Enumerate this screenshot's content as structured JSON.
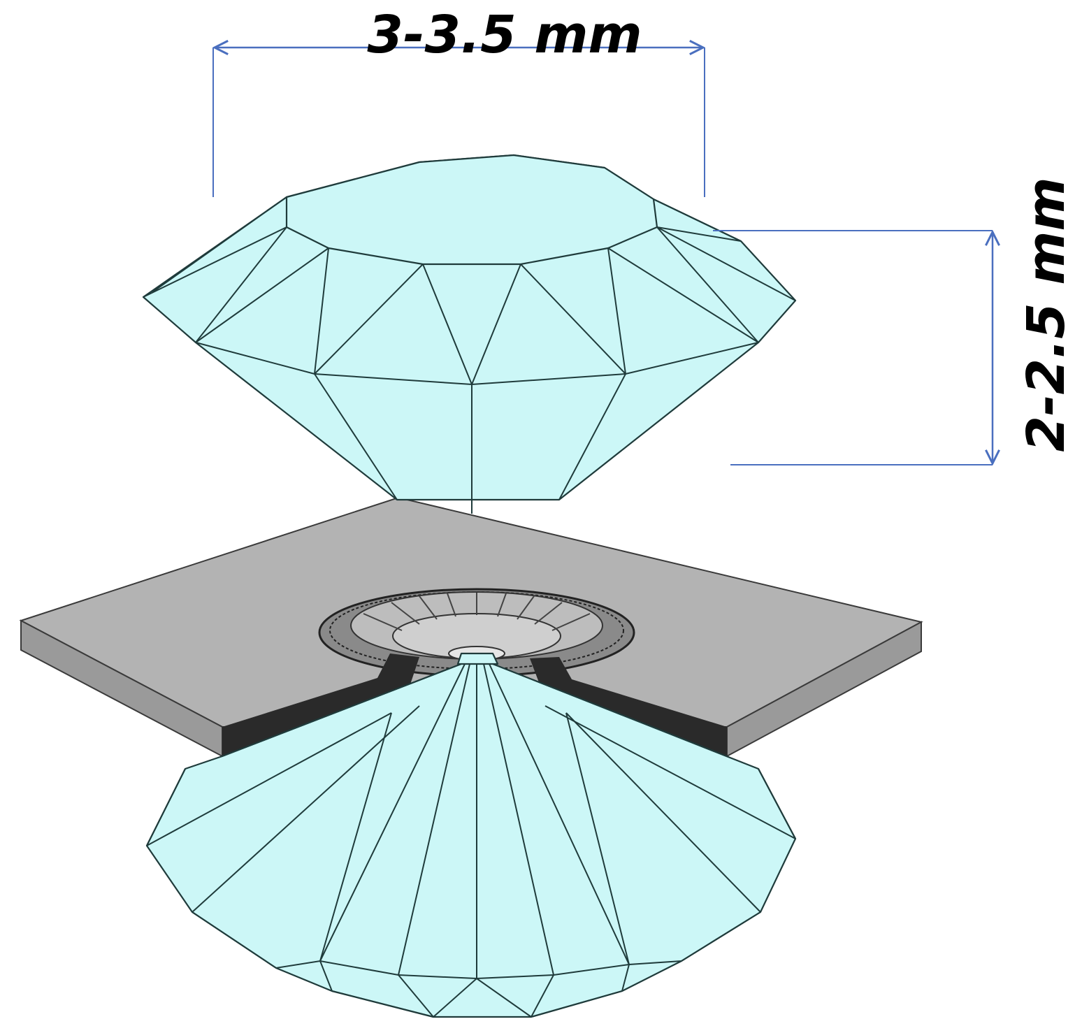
{
  "dimensions": {
    "width_label": "3-3.5 mm",
    "height_label": "2-2.5 mm"
  },
  "colors": {
    "diamond_fill": "#ccf7f7",
    "diamond_stroke": "#1f3b3b",
    "gasket_top": "#b3b3b3",
    "gasket_side": "#9a9a9a",
    "electrode": "#2a2a2a",
    "dimension_line": "#4a6fbf"
  }
}
